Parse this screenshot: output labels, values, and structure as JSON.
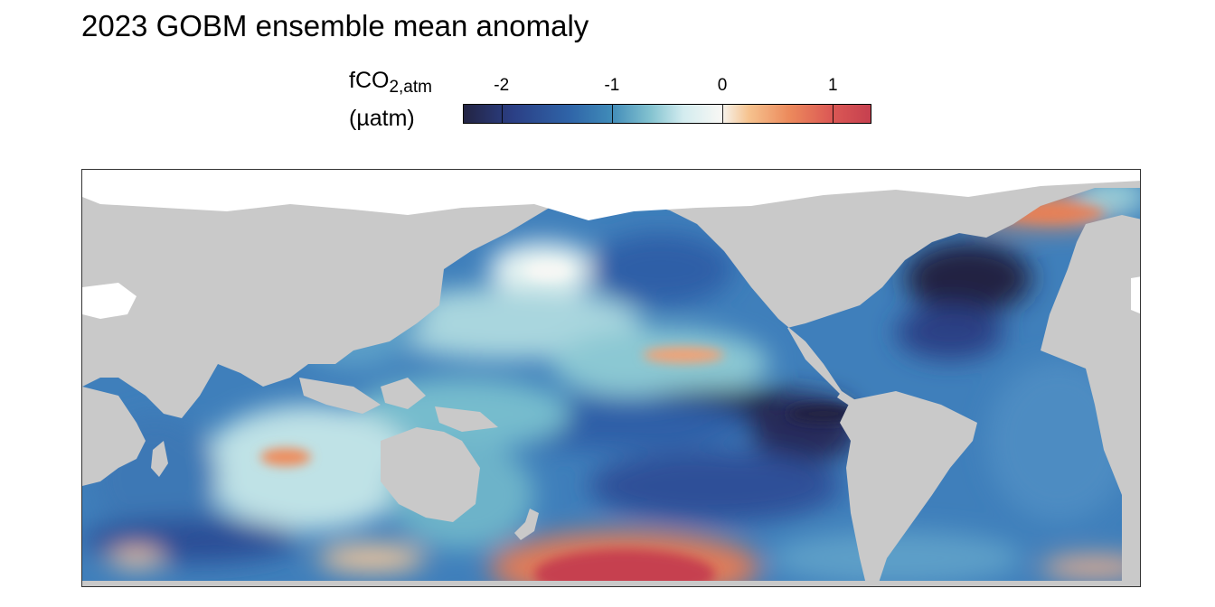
{
  "chart_data": {
    "type": "heatmap",
    "title": "2023 GOBM ensemble mean anomaly",
    "colorbar": {
      "label_main": "fCO",
      "label_sub": "2,atm",
      "label_unit": "(µatm)",
      "ticks": [
        -2,
        -1,
        0,
        1
      ],
      "tick_labels": [
        "-2",
        "-1",
        "0",
        "1"
      ],
      "range": [
        -2.35,
        1.35
      ],
      "colormap": [
        "#232443",
        "#2b3f85",
        "#2f64a8",
        "#3f8ab8",
        "#84c3d0",
        "#d3ecef",
        "#f7f7f4",
        "#f6c38f",
        "#ec8a5c",
        "#dc5a55",
        "#c6404f"
      ]
    },
    "land_color": "#c9c9c9",
    "missing_color": "#ffffff",
    "map_projection": "Pacific-centered global map",
    "grid": false
  }
}
